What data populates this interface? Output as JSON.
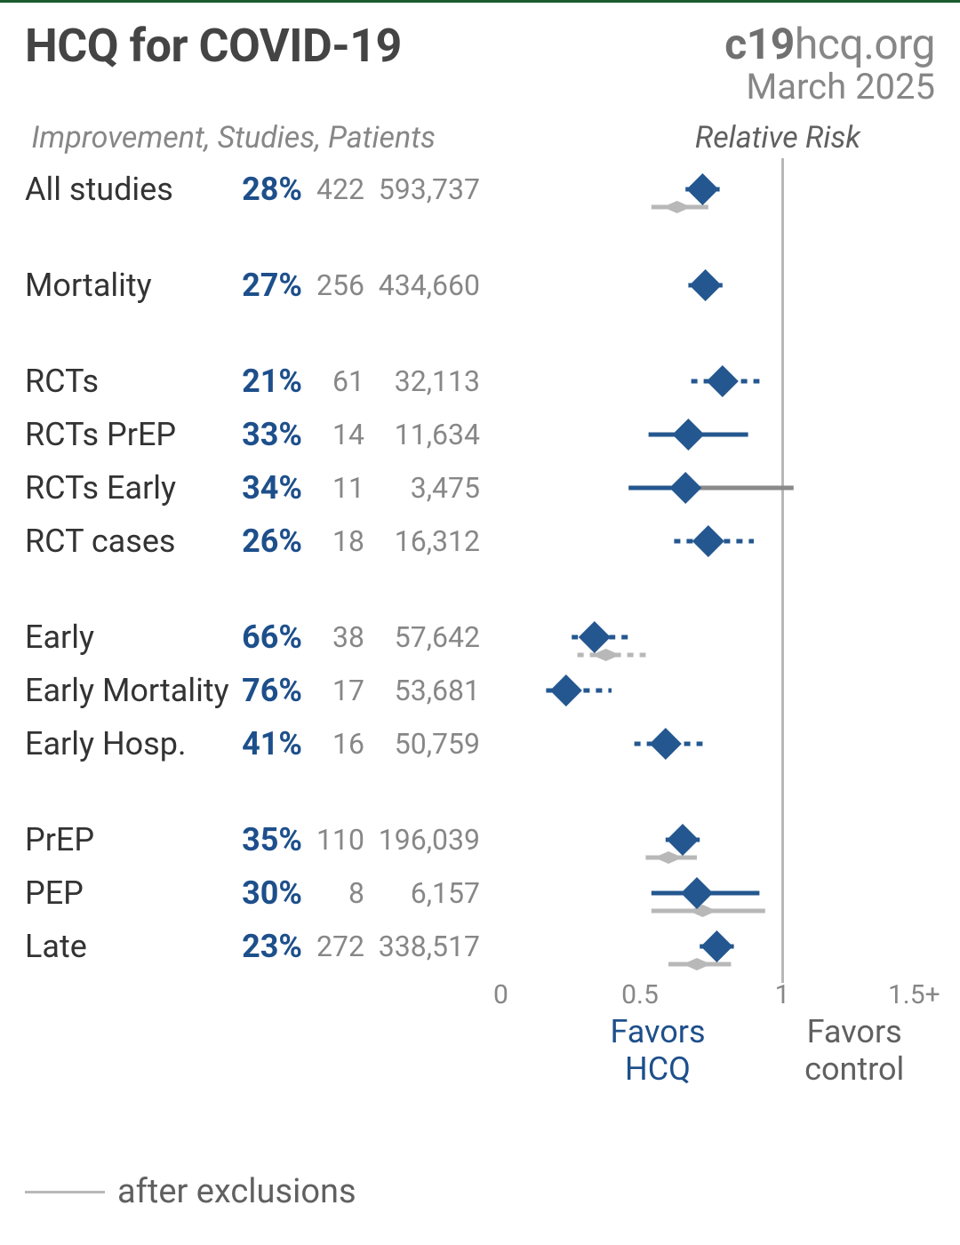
{
  "header": {
    "title": "HCQ for COVID-19",
    "source_bold": "c19",
    "source_rest": "hcq.org",
    "date": "March 2025"
  },
  "subheader": {
    "left": "Improvement, Studies, Patients",
    "right": "Relative Risk"
  },
  "colors": {
    "primary": "#1d4f8b",
    "marker_fill": "#24578f",
    "ci_line": "#24578f",
    "excl_marker": "#b8b8b8",
    "grey_text": "#878787",
    "refline": "#b8b8b8"
  },
  "plot": {
    "x_min": 0,
    "x_max": 1.5,
    "ref_x": 1.0,
    "ticks": [
      {
        "x": 0,
        "label": "0"
      },
      {
        "x": 0.5,
        "label": "0.5"
      },
      {
        "x": 1.0,
        "label": "1"
      },
      {
        "x": 1.5,
        "label": "1.5+"
      }
    ],
    "marker_size": 18,
    "line_width": 5,
    "dash": "7,7"
  },
  "footer": {
    "text": "after exclusions"
  },
  "favors": {
    "left_line1": "Favors",
    "left_line2": "HCQ",
    "right_line1": "Favors",
    "right_line2": "control"
  },
  "rows": [
    {
      "label": "All studies",
      "pct": "28%",
      "studies": "422",
      "patients": "593,737",
      "rr": 0.72,
      "lo": 0.66,
      "hi": 0.78,
      "gap": false,
      "excl": {
        "rr": 0.63,
        "lo": 0.54,
        "hi": 0.74
      }
    },
    {
      "label": "Mortality",
      "pct": "27%",
      "studies": "256",
      "patients": "434,660",
      "rr": 0.73,
      "lo": 0.67,
      "hi": 0.79,
      "gap": true
    },
    {
      "label": "RCTs",
      "pct": "21%",
      "studies": "61",
      "patients": "32,113",
      "rr": 0.79,
      "lo": 0.68,
      "hi": 0.92,
      "gap": true,
      "dashed": true
    },
    {
      "label": "RCTs PrEP",
      "pct": "33%",
      "studies": "14",
      "patients": "11,634",
      "rr": 0.67,
      "lo": 0.53,
      "hi": 0.88,
      "gap": false
    },
    {
      "label": "RCTs Early",
      "pct": "34%",
      "studies": "11",
      "patients": "3,475",
      "rr": 0.66,
      "lo": 0.46,
      "hi": 1.04,
      "gap": false,
      "grey_hi": true
    },
    {
      "label": "RCT cases",
      "pct": "26%",
      "studies": "18",
      "patients": "16,312",
      "rr": 0.74,
      "lo": 0.62,
      "hi": 0.9,
      "gap": false,
      "dashed": true
    },
    {
      "label": "Early",
      "pct": "66%",
      "studies": "38",
      "patients": "57,642",
      "rr": 0.34,
      "lo": 0.26,
      "hi": 0.46,
      "gap": true,
      "dashed": true,
      "excl": {
        "rr": 0.38,
        "lo": 0.28,
        "hi": 0.52,
        "dashed": true
      }
    },
    {
      "label": "Early Mortality",
      "pct": "76%",
      "studies": "17",
      "patients": "53,681",
      "rr": 0.24,
      "lo": 0.17,
      "hi": 0.4,
      "gap": false,
      "dashed": true
    },
    {
      "label": "Early Hosp.",
      "pct": "41%",
      "studies": "16",
      "patients": "50,759",
      "rr": 0.59,
      "lo": 0.48,
      "hi": 0.72,
      "gap": false,
      "dashed": true
    },
    {
      "label": "PrEP",
      "pct": "35%",
      "studies": "110",
      "patients": "196,039",
      "rr": 0.65,
      "lo": 0.59,
      "hi": 0.71,
      "gap": true,
      "excl": {
        "rr": 0.6,
        "lo": 0.52,
        "hi": 0.7
      }
    },
    {
      "label": "PEP",
      "pct": "30%",
      "studies": "8",
      "patients": "6,157",
      "rr": 0.7,
      "lo": 0.54,
      "hi": 0.92,
      "gap": false,
      "excl": {
        "rr": 0.72,
        "lo": 0.54,
        "hi": 0.94
      }
    },
    {
      "label": "Late",
      "pct": "23%",
      "studies": "272",
      "patients": "338,517",
      "rr": 0.77,
      "lo": 0.71,
      "hi": 0.83,
      "gap": false,
      "excl": {
        "rr": 0.7,
        "lo": 0.6,
        "hi": 0.82
      }
    }
  ]
}
